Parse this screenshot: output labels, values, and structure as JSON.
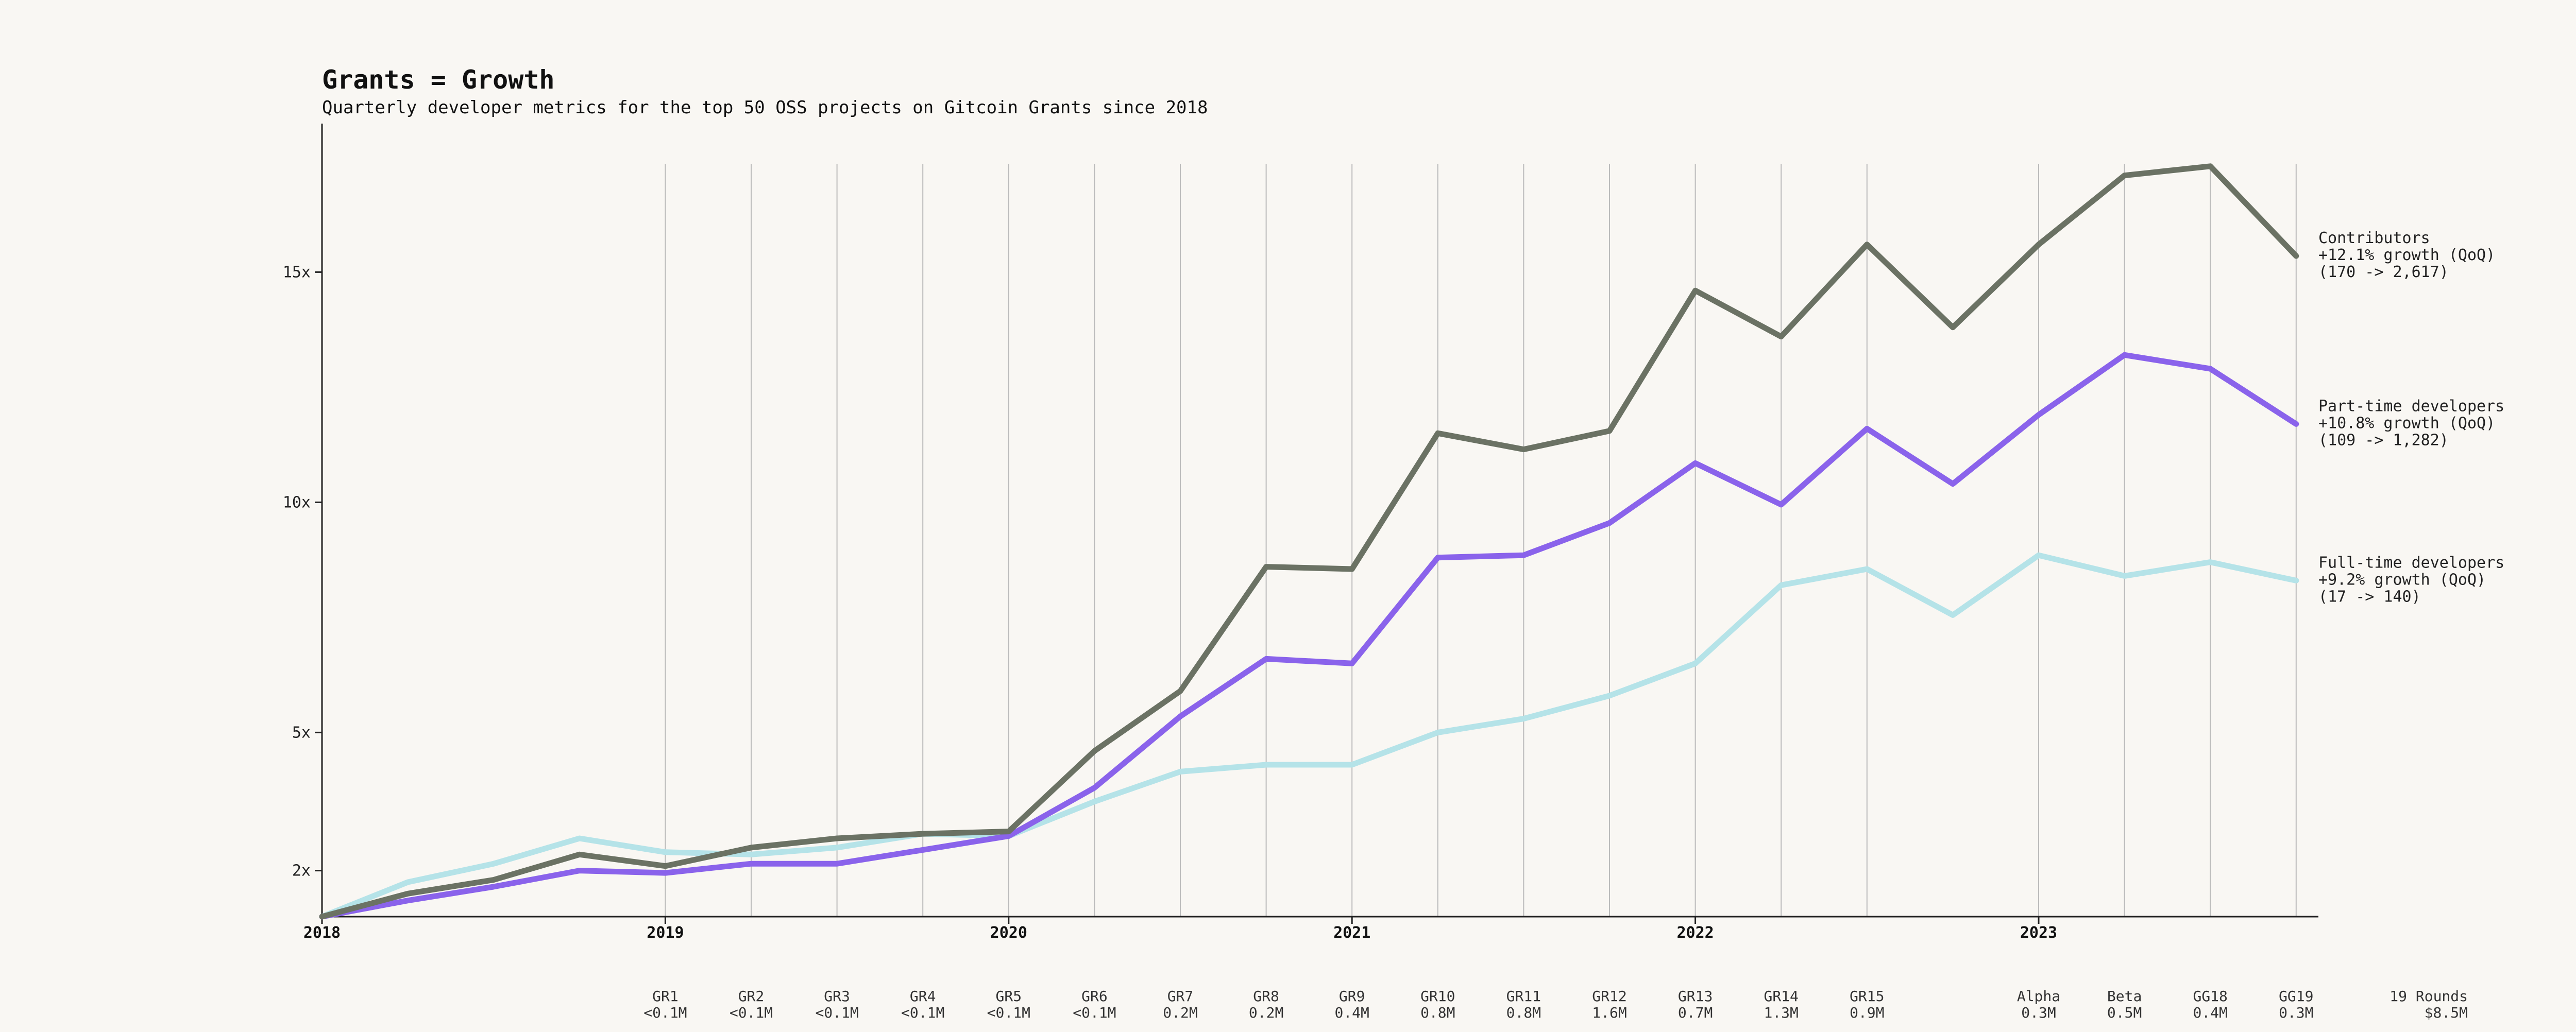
{
  "chart_data": {
    "type": "line",
    "title": "Grants = Growth",
    "subtitle": "Quarterly developer metrics for the top 50 OSS projects on Gitcoin Grants since 2018",
    "xlabel": "",
    "ylabel": "",
    "x_range": [
      "2018-Q1",
      "2023-Q4"
    ],
    "y_range": [
      1,
      18
    ],
    "y_ticks": [
      {
        "value": 2,
        "label": "2x"
      },
      {
        "value": 5,
        "label": "5x"
      },
      {
        "value": 10,
        "label": "10x"
      },
      {
        "value": 15,
        "label": "15x"
      }
    ],
    "years": [
      {
        "label": "2018",
        "q": 0
      },
      {
        "label": "2019",
        "q": 4
      },
      {
        "label": "2020",
        "q": 8
      },
      {
        "label": "2021",
        "q": 12
      },
      {
        "label": "2022",
        "q": 16
      },
      {
        "label": "2023",
        "q": 20
      }
    ],
    "rounds": [
      {
        "name": "GR1",
        "amount": "<0.1M",
        "q": 4
      },
      {
        "name": "GR2",
        "amount": "<0.1M",
        "q": 5
      },
      {
        "name": "GR3",
        "amount": "<0.1M",
        "q": 6
      },
      {
        "name": "GR4",
        "amount": "<0.1M",
        "q": 7
      },
      {
        "name": "GR5",
        "amount": "<0.1M",
        "q": 8
      },
      {
        "name": "GR6",
        "amount": "<0.1M",
        "q": 9
      },
      {
        "name": "GR7",
        "amount": "0.2M",
        "q": 10
      },
      {
        "name": "GR8",
        "amount": "0.2M",
        "q": 11
      },
      {
        "name": "GR9",
        "amount": "0.4M",
        "q": 12
      },
      {
        "name": "GR10",
        "amount": "0.8M",
        "q": 13
      },
      {
        "name": "GR11",
        "amount": "0.8M",
        "q": 14
      },
      {
        "name": "GR12",
        "amount": "1.6M",
        "q": 15
      },
      {
        "name": "GR13",
        "amount": "0.7M",
        "q": 16
      },
      {
        "name": "GR14",
        "amount": "1.3M",
        "q": 17
      },
      {
        "name": "GR15",
        "amount": "0.9M",
        "q": 18
      },
      {
        "name": "Alpha",
        "amount": "0.3M",
        "q": 20
      },
      {
        "name": "Beta",
        "amount": "0.5M",
        "q": 21
      },
      {
        "name": "GG18",
        "amount": "0.4M",
        "q": 22
      },
      {
        "name": "GG19",
        "amount": "0.3M",
        "q": 23
      }
    ],
    "rounds_total": {
      "name": "19 Rounds",
      "amount": "$8.5M"
    },
    "series": [
      {
        "name": "Contributors",
        "growth": "+12.1% growth (QoQ)",
        "range": "(170 -> 2,617)",
        "color": "#6b7264",
        "values": [
          1.0,
          1.5,
          1.8,
          2.35,
          2.1,
          2.5,
          2.7,
          2.8,
          2.85,
          4.6,
          5.9,
          8.6,
          8.55,
          11.5,
          11.15,
          11.55,
          14.6,
          13.6,
          15.6,
          13.8,
          15.6,
          17.1,
          17.3,
          15.35
        ]
      },
      {
        "name": "Part-time developers",
        "growth": "+10.8% growth (QoQ)",
        "range": "(109 -> 1,282)",
        "color": "#8a63eb",
        "values": [
          1.0,
          1.35,
          1.65,
          2.0,
          1.95,
          2.15,
          2.15,
          2.45,
          2.75,
          3.8,
          5.35,
          6.6,
          6.5,
          8.8,
          8.85,
          9.55,
          10.85,
          9.95,
          11.6,
          10.4,
          11.9,
          13.2,
          12.9,
          11.7
        ]
      },
      {
        "name": "Full-time developers",
        "growth": "+9.2% growth (QoQ)",
        "range": "(17 -> 140)",
        "color": "#b5e3e8",
        "values": [
          1.0,
          1.75,
          2.15,
          2.7,
          2.4,
          2.35,
          2.5,
          2.8,
          2.75,
          3.5,
          4.15,
          4.3,
          4.3,
          5.0,
          5.3,
          5.8,
          6.5,
          8.2,
          8.55,
          7.55,
          8.85,
          8.4,
          8.7,
          8.3
        ]
      }
    ]
  }
}
